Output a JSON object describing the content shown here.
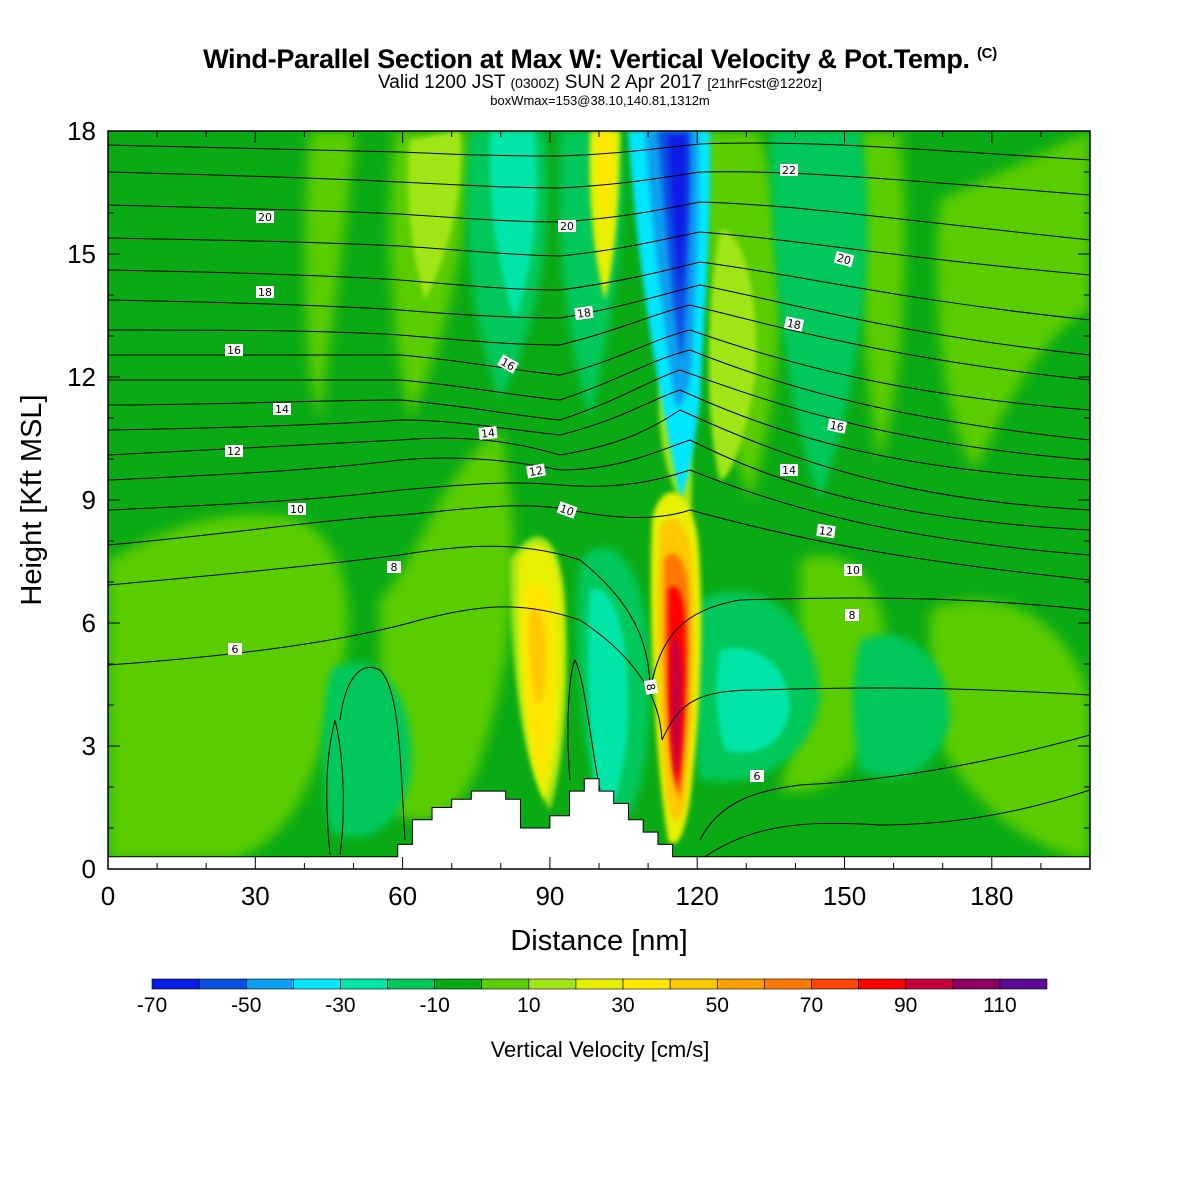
{
  "header": {
    "title": "Wind-Parallel Section at Max W: Vertical Velocity & Pot.Temp.",
    "title_mark": "(C)",
    "valid_prefix": "Valid 1200 JST",
    "valid_utc": "(0300Z)",
    "valid_date": "SUN 2 Apr 2017",
    "forecast": "[21hrFcst@1220z]",
    "box_info": "boxWmax=153@38.10,140.81,1312m"
  },
  "chart_data": {
    "type": "heatmap",
    "xlabel": "Distance [nm]",
    "ylabel": "Height [Kft MSL]",
    "xlim": [
      0,
      200
    ],
    "ylim": [
      0,
      18
    ],
    "x_ticks": [
      "0",
      "30",
      "60",
      "90",
      "120",
      "150",
      "180"
    ],
    "y_ticks": [
      "0",
      "3",
      "6",
      "9",
      "12",
      "15",
      "18"
    ],
    "colorbar": {
      "title": "Vertical Velocity [cm/s]",
      "tick_labels": [
        "-70",
        "-50",
        "-30",
        "-10",
        "10",
        "30",
        "50",
        "70",
        "90",
        "110"
      ],
      "levels": [
        -70,
        -60,
        -50,
        -40,
        -30,
        -20,
        -10,
        0,
        10,
        20,
        30,
        40,
        50,
        60,
        70,
        80,
        90,
        100,
        110,
        120
      ],
      "colors": [
        "#0a1de6",
        "#0a4fe6",
        "#0a9ff0",
        "#00e6ff",
        "#00e6a8",
        "#00c85a",
        "#0aaa14",
        "#5acd00",
        "#a0e614",
        "#e6f000",
        "#ffe600",
        "#ffc800",
        "#ffa000",
        "#ff7800",
        "#ff4600",
        "#ff0000",
        "#c8003c",
        "#8c0064",
        "#5a0a96"
      ]
    },
    "theta_contour_labels": [
      "6",
      "8",
      "10",
      "12",
      "14",
      "16",
      "18",
      "20",
      "22"
    ],
    "features": [
      {
        "name": "downdraft core",
        "x_range": [
          112,
          117
        ],
        "height_range": [
          11,
          18
        ],
        "min_velocity": -70
      },
      {
        "name": "updraft core",
        "x_range": [
          113,
          119
        ],
        "height_range": [
          0.5,
          8
        ],
        "max_velocity": 90
      },
      {
        "name": "updraft",
        "x_range": [
          84,
          93
        ],
        "height_range": [
          2,
          8
        ],
        "max_velocity": 40
      },
      {
        "name": "updraft",
        "x_range": [
          100,
          105
        ],
        "height_range": [
          13,
          18
        ],
        "max_velocity": 30
      }
    ],
    "terrain": {
      "x": [
        0,
        59,
        62,
        66,
        70,
        74,
        78,
        81,
        84,
        87,
        90,
        94,
        97,
        100,
        103,
        106,
        109,
        112,
        115,
        118,
        121,
        200
      ],
      "height_kft": [
        0.3,
        0.6,
        1.2,
        1.5,
        1.7,
        1.9,
        1.9,
        1.7,
        1.0,
        1.0,
        1.3,
        1.9,
        2.2,
        1.9,
        1.6,
        1.2,
        0.9,
        0.6,
        0.3,
        0.3,
        0.3,
        0.3
      ]
    }
  }
}
